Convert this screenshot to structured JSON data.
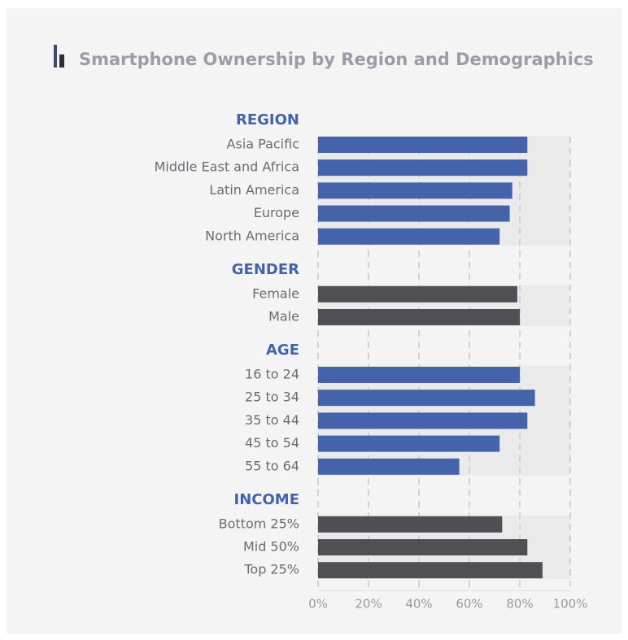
{
  "chart_data": {
    "type": "bar",
    "title": "Smartphone Ownership by Region and Demographics",
    "groups": [
      {
        "name": "REGION",
        "color": "#4463ab",
        "categories": [
          "Asia Pacific",
          "Middle East and Africa",
          "Latin America",
          "Europe",
          "North America"
        ],
        "values": [
          83,
          83,
          77,
          76,
          72
        ]
      },
      {
        "name": "GENDER",
        "color": "#4f4f55",
        "categories": [
          "Female",
          "Male"
        ],
        "values": [
          79,
          80
        ]
      },
      {
        "name": "AGE",
        "color": "#4463ab",
        "categories": [
          "16 to 24",
          "25 to 34",
          "35 to 44",
          "45 to 54",
          "55 to 64"
        ],
        "values": [
          80,
          86,
          83,
          72,
          56
        ]
      },
      {
        "name": "INCOME",
        "color": "#4f4f55",
        "categories": [
          "Bottom 25%",
          "Mid 50%",
          "Top 25%"
        ],
        "values": [
          73,
          83,
          89
        ]
      }
    ],
    "xlim": [
      0,
      100
    ],
    "xticks": [
      {
        "value": 0,
        "label": "0%"
      },
      {
        "value": 20,
        "label": "20%"
      },
      {
        "value": 40,
        "label": "40%"
      },
      {
        "value": 60,
        "label": "60%"
      },
      {
        "value": 80,
        "label": "80%"
      },
      {
        "value": 100,
        "label": "100%"
      }
    ],
    "grid": true
  }
}
